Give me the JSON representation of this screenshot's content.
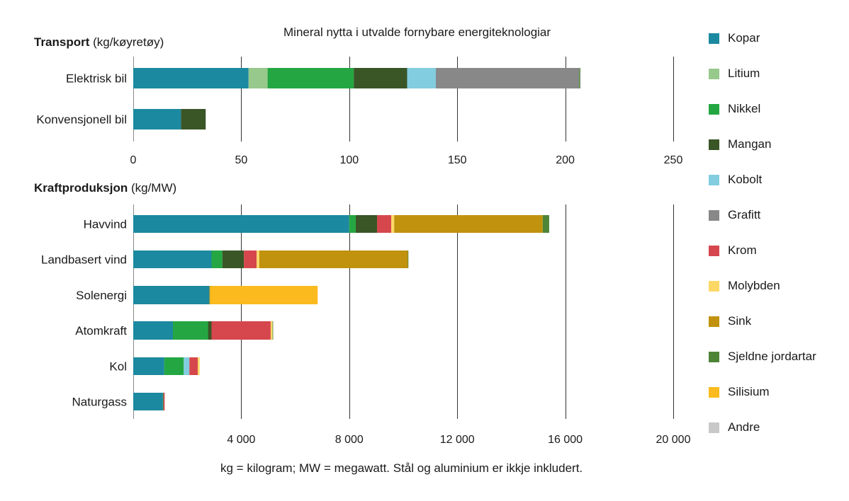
{
  "chart_data": [
    {
      "type": "bar",
      "orientation": "horizontal",
      "stacked": true,
      "title": "Mineral nytta i utvalde fornybare energiteknologiar",
      "section_title": "Transport",
      "unit": "(kg/køyretøy)",
      "categories": [
        "Elektrisk bil",
        "Konvensjonell bil"
      ],
      "xlim": [
        0,
        250
      ],
      "xticks": [
        0,
        50,
        100,
        150,
        200,
        250
      ],
      "xtick_labels": [
        "0",
        "50",
        "100",
        "150",
        "200",
        "250"
      ],
      "grid": true,
      "series": [
        {
          "name": "Kopar",
          "values": [
            53.4,
            22.1
          ]
        },
        {
          "name": "Litium",
          "values": [
            8.8,
            0
          ]
        },
        {
          "name": "Nikkel",
          "values": [
            39.9,
            0
          ]
        },
        {
          "name": "Mangan",
          "values": [
            24.7,
            11.4
          ]
        },
        {
          "name": "Kobolt",
          "values": [
            13.3,
            0
          ]
        },
        {
          "name": "Grafitt",
          "values": [
            66.3,
            0
          ]
        },
        {
          "name": "Krom",
          "values": [
            0,
            0
          ]
        },
        {
          "name": "Molybden",
          "values": [
            0,
            0
          ]
        },
        {
          "name": "Sink",
          "values": [
            0,
            0
          ]
        },
        {
          "name": "Sjeldne jordartar",
          "values": [
            0.5,
            0
          ]
        },
        {
          "name": "Silisium",
          "values": [
            0,
            0
          ]
        },
        {
          "name": "Andre",
          "values": [
            0.3,
            0.1
          ]
        }
      ]
    },
    {
      "type": "bar",
      "orientation": "horizontal",
      "stacked": true,
      "section_title": "Kraftproduksjon",
      "unit": "(kg/MW)",
      "categories": [
        "Havvind",
        "Landbasert vind",
        "Solenergi",
        "Atomkraft",
        "Kol",
        "Naturgass"
      ],
      "xlim": [
        0,
        20000
      ],
      "xticks": [
        0,
        4000,
        8000,
        12000,
        16000,
        20000
      ],
      "xtick_labels": [
        "",
        "4 000",
        "8 000",
        "12 000",
        "16 000",
        "20 000"
      ],
      "grid": true,
      "series": [
        {
          "name": "Kopar",
          "values": [
            8000,
            2900,
            2820,
            1470,
            1150,
            1100
          ]
        },
        {
          "name": "Litium",
          "values": [
            0,
            0,
            0,
            0,
            0,
            0
          ]
        },
        {
          "name": "Nikkel",
          "values": [
            240,
            400,
            1,
            1300,
            720,
            16
          ]
        },
        {
          "name": "Mangan",
          "values": [
            790,
            800,
            0,
            130,
            0,
            0
          ]
        },
        {
          "name": "Kobolt",
          "values": [
            0,
            0,
            0,
            0,
            210,
            0
          ]
        },
        {
          "name": "Grafitt",
          "values": [
            0,
            0,
            0,
            0,
            0,
            0
          ]
        },
        {
          "name": "Krom",
          "values": [
            525,
            470,
            0,
            2190,
            310,
            48
          ]
        },
        {
          "name": "Molybden",
          "values": [
            110,
            100,
            0,
            70,
            70,
            0
          ]
        },
        {
          "name": "Sink",
          "values": [
            5500,
            5500,
            30,
            0,
            0,
            0
          ]
        },
        {
          "name": "Sjeldne jordartar",
          "values": [
            240,
            14,
            0,
            0.5,
            0,
            0
          ]
        },
        {
          "name": "Silisium",
          "values": [
            0,
            0,
            3980,
            0,
            0,
            0
          ]
        },
        {
          "name": "Andre",
          "values": [
            0,
            0,
            0,
            0,
            0,
            0
          ]
        }
      ]
    }
  ],
  "legend": {
    "placement": "right",
    "items": [
      {
        "label": "Kopar",
        "color": "#1b899f"
      },
      {
        "label": "Litium",
        "color": "#97c88c"
      },
      {
        "label": "Nikkel",
        "color": "#24a742"
      },
      {
        "label": "Mangan",
        "color": "#3a5526"
      },
      {
        "label": "Kobolt",
        "color": "#82cde0"
      },
      {
        "label": "Grafitt",
        "color": "#888888"
      },
      {
        "label": "Krom",
        "color": "#d5474c"
      },
      {
        "label": "Molybden",
        "color": "#fdd867"
      },
      {
        "label": "Sink",
        "color": "#c0920d"
      },
      {
        "label": "Sjeldne jordartar",
        "color": "#4e8436"
      },
      {
        "label": "Silisium",
        "color": "#fbbb1e"
      },
      {
        "label": "Andre",
        "color": "#c8c8c8"
      }
    ]
  },
  "labels": {
    "title": "Mineral nytta i utvalde fornybare energiteknologiar",
    "transport_bold": "Transport",
    "transport_unit": " (kg/køyretøy)",
    "kraft_bold": "Kraftproduksjon",
    "kraft_unit": " (kg/MW)",
    "footnote": "kg = kilogram; MW = megawatt. Stål og aluminium er ikkje inkludert."
  }
}
